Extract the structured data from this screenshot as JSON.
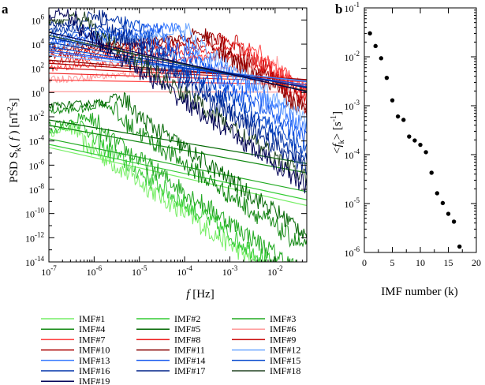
{
  "chart_data": [
    {
      "panel_label": "a",
      "type": "line",
      "title": "",
      "xlabel_italic": "f",
      "xlabel_rest": " [Hz]",
      "ylabel_main": "PSD S",
      "ylabel_sub": "k",
      "ylabel_paren": "( ",
      "ylabel_f": "f",
      "ylabel_close": " ) [nT",
      "ylabel_sup": "2",
      "ylabel_end": "s]",
      "xscale": "log",
      "yscale": "log",
      "xlim_exp": [
        -7,
        -1.3
      ],
      "ylim_exp": [
        -14,
        7
      ],
      "x_tick_exps": [
        -7,
        -6,
        -5,
        -4,
        -3,
        -2
      ],
      "y_tick_exps": [
        -14,
        -12,
        -10,
        -8,
        -6,
        -4,
        -2,
        0,
        2,
        4,
        6
      ],
      "tick_base": "10",
      "series": [
        {
          "name": "IMF#1",
          "color": "#77ee66",
          "peak_exp": -6.8,
          "peak_log": -3.3
        },
        {
          "name": "IMF#2",
          "color": "#33cc33",
          "peak_exp": -6.6,
          "peak_log": -3.0
        },
        {
          "name": "IMF#3",
          "color": "#22aa22",
          "peak_exp": -6.4,
          "peak_log": -2.5
        },
        {
          "name": "IMF#4",
          "color": "#118811",
          "peak_exp": -6.0,
          "peak_log": -1.3
        },
        {
          "name": "IMF#5",
          "color": "#006600",
          "peak_exp": -5.7,
          "peak_log": -0.8
        },
        {
          "name": "IMF#6",
          "color": "#ff9999",
          "peak_exp": -2.4,
          "peak_log": 2.2
        },
        {
          "name": "IMF#7",
          "color": "#ff4444",
          "peak_exp": -2.7,
          "peak_log": 3.1
        },
        {
          "name": "IMF#8",
          "color": "#ee2222",
          "peak_exp": -3.0,
          "peak_log": 3.6
        },
        {
          "name": "IMF#9",
          "color": "#cc1111",
          "peak_exp": -3.3,
          "peak_log": 4.0
        },
        {
          "name": "IMF#10",
          "color": "#aa0000",
          "peak_exp": -3.6,
          "peak_log": 4.3
        },
        {
          "name": "IMF#11",
          "color": "#880000",
          "peak_exp": -3.9,
          "peak_log": 4.5
        },
        {
          "name": "IMF#12",
          "color": "#6fa8ff",
          "peak_exp": -4.3,
          "peak_log": 4.8
        },
        {
          "name": "IMF#13",
          "color": "#3377ff",
          "peak_exp": -4.6,
          "peak_log": 5.0
        },
        {
          "name": "IMF#14",
          "color": "#1155ee",
          "peak_exp": -5.0,
          "peak_log": 5.1
        },
        {
          "name": "IMF#15",
          "color": "#0044cc",
          "peak_exp": -5.4,
          "peak_log": 5.3
        },
        {
          "name": "IMF#16",
          "color": "#0033aa",
          "peak_exp": -5.8,
          "peak_log": 5.6
        },
        {
          "name": "IMF#17",
          "color": "#002288",
          "peak_exp": -6.2,
          "peak_log": 5.9
        },
        {
          "name": "IMF#18",
          "color": "#224422",
          "peak_exp": -6.6,
          "peak_log": 6.0
        },
        {
          "name": "IMF#19",
          "color": "#000055",
          "peak_exp": -6.9,
          "peak_log": 6.2
        }
      ]
    },
    {
      "panel_label": "b",
      "type": "scatter",
      "title": "",
      "xlabel": "IMF number (k)",
      "ylabel_pre": "<",
      "ylabel_f": "f",
      "ylabel_sub": "k",
      "ylabel_post": "> [s",
      "ylabel_sup": "-1",
      "ylabel_end": "]",
      "xscale": "linear",
      "yscale": "log",
      "xlim": [
        0,
        20
      ],
      "ylim_exp": [
        -6,
        -1
      ],
      "x_ticks": [
        0,
        5,
        10,
        15,
        20
      ],
      "y_tick_exps": [
        -6,
        -5,
        -4,
        -3,
        -2,
        -1
      ],
      "tick_base": "10",
      "color": "#000000",
      "x": [
        1,
        2,
        3,
        4,
        5,
        6,
        7,
        8,
        9,
        10,
        11,
        12,
        13,
        14,
        15,
        16,
        17
      ],
      "y_log10": [
        -1.52,
        -1.78,
        -2.03,
        -2.43,
        -2.89,
        -3.22,
        -3.29,
        -3.63,
        -3.71,
        -3.8,
        -3.95,
        -4.37,
        -4.79,
        -4.99,
        -5.21,
        -5.37,
        -5.88
      ]
    }
  ],
  "legend": {
    "placement": "bottom",
    "columns": 3,
    "entries": [
      "IMF#1",
      "IMF#2",
      "IMF#3",
      "IMF#4",
      "IMF#5",
      "IMF#6",
      "IMF#7",
      "IMF#8",
      "IMF#9",
      "IMF#10",
      "IMF#11",
      "IMF#12",
      "IMF#13",
      "IMF#14",
      "IMF#15",
      "IMF#16",
      "IMF#17",
      "IMF#18",
      "IMF#19"
    ]
  }
}
